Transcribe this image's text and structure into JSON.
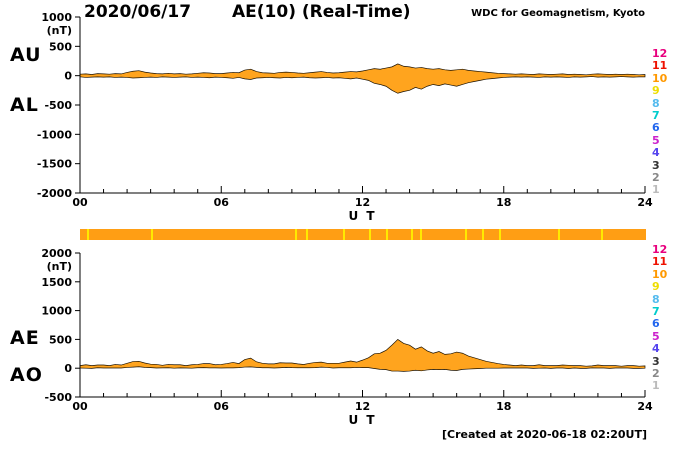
{
  "header": {
    "date": "2020/06/17",
    "title": "AE(10) (Real-Time)",
    "source": "WDC for Geomagnetism, Kyoto"
  },
  "footer": {
    "created": "[Created at 2020-06-18 02:20UT]"
  },
  "stations": [
    {
      "label": "12",
      "color": "#E8007E"
    },
    {
      "label": "11",
      "color": "#EE1100"
    },
    {
      "label": "10",
      "color": "#FF9900"
    },
    {
      "label": "9",
      "color": "#EEDD00"
    },
    {
      "label": "8",
      "color": "#55BBEE"
    },
    {
      "label": "7",
      "color": "#00CCCC"
    },
    {
      "label": "6",
      "color": "#2266EE"
    },
    {
      "label": "5",
      "color": "#CC22CC"
    },
    {
      "label": "4",
      "color": "#5544EE"
    },
    {
      "label": "3",
      "color": "#333333"
    },
    {
      "label": "2",
      "color": "#888888"
    },
    {
      "label": "1",
      "color": "#BBBBBB"
    }
  ],
  "availability_bar": {
    "color": "#FF9E14",
    "streak_color": "#FFEB00",
    "streaks": [
      0.012,
      0.125,
      0.38,
      0.4,
      0.465,
      0.51,
      0.54,
      0.585,
      0.6,
      0.68,
      0.71,
      0.74,
      0.845,
      0.92
    ]
  },
  "chart_data": [
    {
      "type": "area",
      "title": "AU / AL auroral electrojet indices, 2020/06/17",
      "left_labels": [
        "AU",
        "AL"
      ],
      "x_start": 0,
      "x_end": 24,
      "x_step": 0.25,
      "x_minor_step": 1,
      "xticks": [
        0,
        6,
        12,
        18,
        24
      ],
      "xtick_labels": [
        "00",
        "06",
        "12",
        "18",
        "24"
      ],
      "xlabel": "U T",
      "ylim": [
        -2000,
        1000
      ],
      "yticks": [
        1000,
        500,
        0,
        -500,
        -1000,
        -1500,
        -2000
      ],
      "y_unit": "(nT)",
      "fill_color": "#FFA41E",
      "line_color": "#1A1000",
      "series": [
        {
          "name": "AU",
          "values": [
            25,
            30,
            20,
            35,
            30,
            25,
            35,
            30,
            55,
            75,
            85,
            60,
            45,
            35,
            30,
            40,
            30,
            35,
            25,
            30,
            40,
            50,
            45,
            35,
            35,
            45,
            55,
            50,
            95,
            110,
            70,
            50,
            45,
            40,
            55,
            60,
            55,
            45,
            40,
            50,
            60,
            70,
            55,
            45,
            50,
            60,
            70,
            65,
            80,
            100,
            120,
            110,
            130,
            150,
            200,
            160,
            150,
            130,
            140,
            120,
            110,
            120,
            100,
            90,
            100,
            110,
            90,
            80,
            70,
            60,
            50,
            40,
            35,
            30,
            25,
            30,
            25,
            20,
            30,
            25,
            20,
            25,
            30,
            20,
            25,
            20,
            15,
            25,
            30,
            25,
            20,
            25,
            20,
            25,
            20,
            15,
            20
          ]
        },
        {
          "name": "AL",
          "values": [
            -20,
            -30,
            -25,
            -20,
            -25,
            -20,
            -30,
            -25,
            -30,
            -40,
            -35,
            -30,
            -25,
            -30,
            -20,
            -25,
            -30,
            -25,
            -20,
            -30,
            -25,
            -30,
            -35,
            -25,
            -30,
            -35,
            -45,
            -30,
            -55,
            -65,
            -40,
            -35,
            -30,
            -35,
            -40,
            -30,
            -35,
            -30,
            -25,
            -35,
            -40,
            -35,
            -30,
            -40,
            -35,
            -45,
            -55,
            -40,
            -60,
            -80,
            -130,
            -150,
            -180,
            -250,
            -300,
            -270,
            -250,
            -200,
            -230,
            -180,
            -150,
            -170,
            -140,
            -160,
            -180,
            -150,
            -120,
            -100,
            -80,
            -60,
            -50,
            -40,
            -30,
            -25,
            -20,
            -25,
            -20,
            -25,
            -30,
            -20,
            -25,
            -20,
            -25,
            -30,
            -20,
            -25,
            -20,
            -15,
            -25,
            -20,
            -25,
            -20,
            -15,
            -20,
            -25,
            -20,
            -20
          ]
        }
      ]
    },
    {
      "type": "area",
      "title": "AE / AO auroral electrojet indices, 2020/06/17",
      "left_labels": [
        "AE",
        "AO"
      ],
      "x_start": 0,
      "x_end": 24,
      "x_step": 0.25,
      "x_minor_step": 1,
      "xticks": [
        0,
        6,
        12,
        18,
        24
      ],
      "xtick_labels": [
        "00",
        "06",
        "12",
        "18",
        "24"
      ],
      "xlabel": "U T",
      "ylim": [
        -500,
        2000
      ],
      "yticks": [
        2000,
        1500,
        1000,
        500,
        0,
        -500
      ],
      "y_unit": "(nT)",
      "fill_color": "#FFA41E",
      "line_color": "#1A1000",
      "series": [
        {
          "name": "AE",
          "values": [
            45,
            60,
            45,
            55,
            55,
            45,
            65,
            55,
            85,
            115,
            120,
            90,
            70,
            65,
            50,
            65,
            60,
            60,
            45,
            60,
            65,
            80,
            80,
            60,
            65,
            80,
            100,
            80,
            150,
            175,
            110,
            85,
            75,
            75,
            95,
            90,
            90,
            75,
            65,
            85,
            100,
            105,
            85,
            85,
            85,
            105,
            125,
            105,
            140,
            180,
            250,
            260,
            310,
            400,
            500,
            430,
            400,
            330,
            370,
            300,
            260,
            290,
            240,
            250,
            280,
            260,
            210,
            180,
            150,
            120,
            100,
            80,
            65,
            55,
            45,
            55,
            45,
            45,
            60,
            45,
            45,
            45,
            55,
            50,
            45,
            45,
            35,
            40,
            55,
            45,
            45,
            45,
            35,
            45,
            45,
            35,
            40
          ]
        },
        {
          "name": "AO",
          "values": [
            3,
            0,
            -3,
            8,
            3,
            3,
            3,
            3,
            13,
            18,
            25,
            15,
            10,
            3,
            5,
            8,
            0,
            5,
            3,
            0,
            8,
            10,
            5,
            5,
            3,
            5,
            5,
            10,
            20,
            23,
            15,
            8,
            8,
            3,
            8,
            15,
            10,
            8,
            8,
            8,
            10,
            18,
            13,
            3,
            8,
            8,
            8,
            13,
            10,
            10,
            -5,
            -20,
            -25,
            -50,
            -50,
            -55,
            -50,
            -35,
            -45,
            -30,
            -20,
            -25,
            -20,
            -35,
            -40,
            -20,
            -15,
            -10,
            -5,
            0,
            0,
            0,
            3,
            3,
            3,
            3,
            3,
            -3,
            0,
            3,
            -3,
            3,
            3,
            -5,
            3,
            -3,
            -3,
            5,
            3,
            3,
            -3,
            3,
            3,
            3,
            -3,
            -3,
            0
          ]
        }
      ]
    }
  ]
}
